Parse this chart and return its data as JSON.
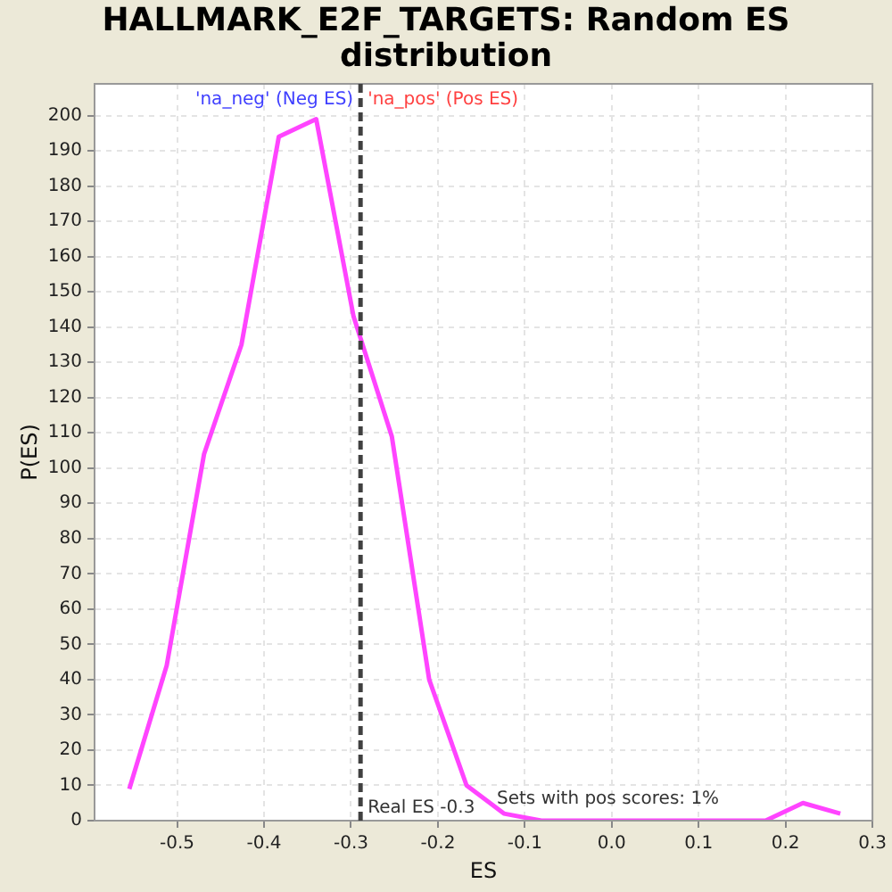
{
  "chart_data": {
    "type": "line",
    "title": "HALLMARK_E2F_TARGETS: Random ES distribution",
    "xlabel": "ES",
    "ylabel": "P(ES)",
    "x": [
      -0.555,
      -0.512,
      -0.469,
      -0.426,
      -0.383,
      -0.34,
      -0.297,
      -0.253,
      -0.21,
      -0.167,
      -0.124,
      -0.081,
      -0.038,
      0.005,
      0.048,
      0.091,
      0.134,
      0.177,
      0.22,
      0.263
    ],
    "series": [
      {
        "color": "#ff44ff",
        "values": [
          9,
          44,
          104,
          135,
          194,
          199,
          143,
          109,
          40,
          10,
          2,
          0,
          0,
          0,
          0,
          0,
          0,
          0,
          5,
          2
        ]
      }
    ],
    "xlim": [
      -0.595,
      0.3
    ],
    "xticks": [
      -0.5,
      -0.4,
      -0.3,
      -0.2,
      -0.1,
      {
        "value": 0,
        "label": "0.0"
      },
      0.1,
      0.2,
      0.3
    ],
    "ylim": [
      0,
      209
    ],
    "yticks": [
      0,
      10,
      20,
      30,
      40,
      50,
      60,
      70,
      80,
      90,
      100,
      110,
      120,
      130,
      140,
      150,
      160,
      170,
      180,
      190,
      200
    ],
    "grid": true,
    "legend": false,
    "marker": "none",
    "line_style": "solid",
    "ref_lines": [
      {
        "axis": "x",
        "value": -0.289,
        "label": "Real ES -0.3",
        "color": "#404040",
        "line_style": "dashed"
      }
    ],
    "annotations": [
      "'na_neg' (Neg ES)",
      "'na_pos' (Pos ES)",
      "Sets with pos scores: 1%"
    ]
  }
}
